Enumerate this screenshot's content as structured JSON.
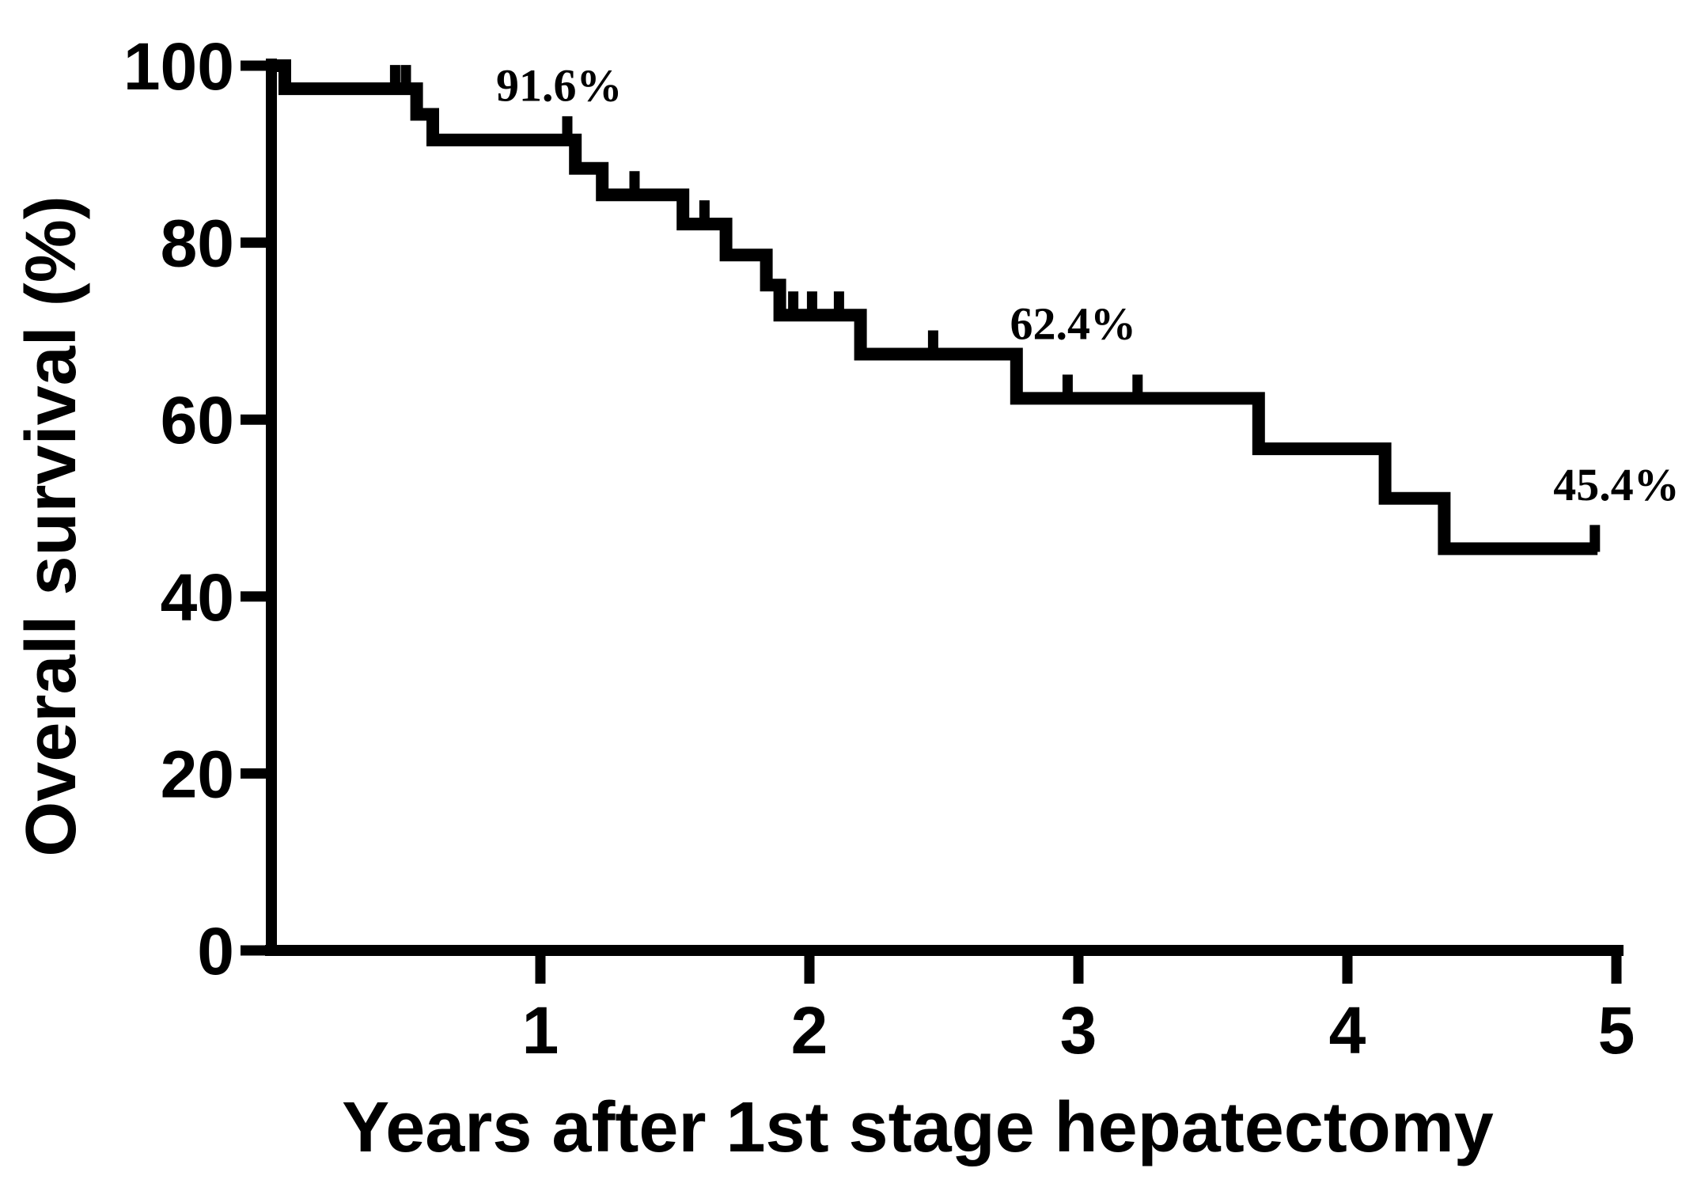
{
  "chart_data": {
    "type": "line",
    "subtype": "kaplan-meier-step-curve",
    "title": "",
    "xlabel": "Years after 1st stage hepatectomy",
    "ylabel": "Overall survival (%)",
    "xlim": [
      0,
      5
    ],
    "ylim": [
      0,
      100
    ],
    "xticks": [
      1,
      2,
      3,
      4,
      5
    ],
    "yticks": [
      0,
      20,
      40,
      60,
      80,
      100
    ],
    "grid": false,
    "legend": "none",
    "background": "#ffffff",
    "line_color": "#000000",
    "series": [
      {
        "name": "Overall survival",
        "steps": [
          {
            "t": 0.0,
            "s": 100.0
          },
          {
            "t": 0.05,
            "s": 97.4
          },
          {
            "t": 0.54,
            "s": 94.5
          },
          {
            "t": 0.6,
            "s": 91.6
          },
          {
            "t": 1.13,
            "s": 88.4
          },
          {
            "t": 1.23,
            "s": 85.4
          },
          {
            "t": 1.53,
            "s": 82.1
          },
          {
            "t": 1.69,
            "s": 78.6
          },
          {
            "t": 1.84,
            "s": 75.2
          },
          {
            "t": 1.89,
            "s": 71.8
          },
          {
            "t": 2.19,
            "s": 67.4
          },
          {
            "t": 2.77,
            "s": 62.4
          },
          {
            "t": 3.67,
            "s": 56.7
          },
          {
            "t": 4.14,
            "s": 51.1
          },
          {
            "t": 4.36,
            "s": 45.4
          }
        ],
        "end_t": 4.93,
        "censor_marks": [
          {
            "t": 0.46,
            "s": 97.4
          },
          {
            "t": 0.5,
            "s": 97.4
          },
          {
            "t": 1.1,
            "s": 91.6
          },
          {
            "t": 1.35,
            "s": 85.4
          },
          {
            "t": 1.61,
            "s": 82.1
          },
          {
            "t": 1.94,
            "s": 71.8
          },
          {
            "t": 2.01,
            "s": 71.8
          },
          {
            "t": 2.11,
            "s": 71.8
          },
          {
            "t": 2.46,
            "s": 67.4
          },
          {
            "t": 2.96,
            "s": 62.4
          },
          {
            "t": 3.22,
            "s": 62.4
          },
          {
            "t": 4.92,
            "s": 45.4
          }
        ]
      }
    ],
    "annotations": [
      {
        "text": "91.6%",
        "t": 1.07,
        "s": 96.0
      },
      {
        "text": "62.4%",
        "t": 2.98,
        "s": 69.1
      },
      {
        "text": "45.4%",
        "t": 5.0,
        "s": 50.9
      }
    ]
  }
}
